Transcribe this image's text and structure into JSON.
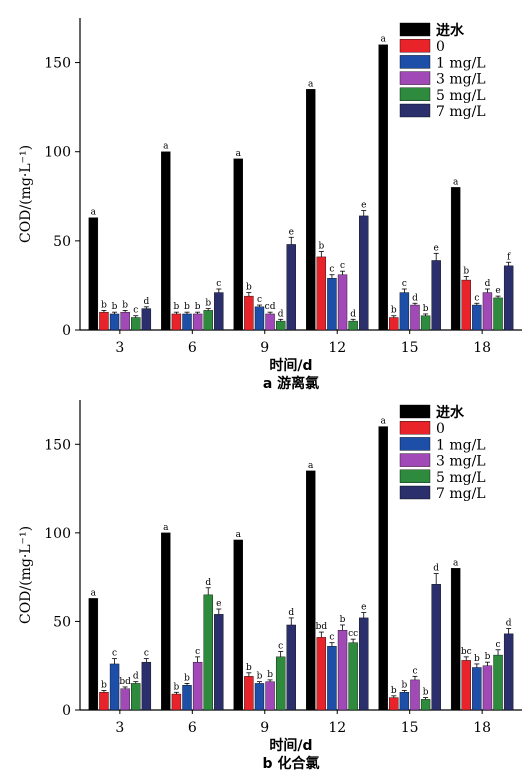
{
  "chart_data": [
    {
      "type": "bar",
      "caption": "a 游离氯",
      "xlabel": "时间/d",
      "ylabel": "COD/(mg·L⁻¹)",
      "ylim": [
        0,
        175
      ],
      "yticks": [
        0,
        50,
        100,
        150
      ],
      "categories": [
        "3",
        "6",
        "9",
        "12",
        "15",
        "18"
      ],
      "legend_position": "top-right",
      "series": [
        {
          "name": "进水",
          "color": "#000000",
          "values": [
            63,
            100,
            96,
            135,
            160,
            80
          ],
          "errors": [
            0,
            0,
            0,
            0,
            0,
            0
          ],
          "labels": [
            "a",
            "a",
            "a",
            "a",
            "a",
            "a"
          ]
        },
        {
          "name": "0",
          "color": "#e8232a",
          "values": [
            10,
            9,
            19,
            41,
            7,
            28
          ],
          "errors": [
            1,
            1,
            2,
            3,
            1,
            2
          ],
          "labels": [
            "b",
            "b",
            "b",
            "b",
            "b",
            "b"
          ]
        },
        {
          "name": "1 mg/L",
          "color": "#1d4fa8",
          "values": [
            9,
            9,
            13,
            29,
            21,
            14
          ],
          "errors": [
            1,
            1,
            1,
            2,
            2,
            1
          ],
          "labels": [
            "b",
            "b",
            "c",
            "c",
            "c",
            "c"
          ]
        },
        {
          "name": "3 mg/L",
          "color": "#a249b8",
          "values": [
            10,
            9,
            9,
            31,
            14,
            21
          ],
          "errors": [
            1,
            1,
            1,
            2,
            1,
            2
          ],
          "labels": [
            "b",
            "b",
            "cd",
            "c",
            "d",
            "d"
          ]
        },
        {
          "name": "5 mg/L",
          "color": "#2e8b3e",
          "values": [
            7,
            11,
            5,
            5,
            8,
            18
          ],
          "errors": [
            1,
            1,
            1,
            1,
            1,
            1
          ],
          "labels": [
            "c",
            "b",
            "d",
            "d",
            "b",
            "e"
          ]
        },
        {
          "name": "7 mg/L",
          "color": "#2b2f6b",
          "values": [
            12,
            21,
            48,
            64,
            39,
            36
          ],
          "errors": [
            1,
            2,
            4,
            3,
            4,
            2
          ],
          "labels": [
            "d",
            "c",
            "e",
            "e",
            "e",
            "f"
          ]
        }
      ]
    },
    {
      "type": "bar",
      "caption": "b 化合氯",
      "xlabel": "时间/d",
      "ylabel": "COD/(mg·L⁻¹)",
      "ylim": [
        0,
        175
      ],
      "yticks": [
        0,
        50,
        100,
        150
      ],
      "categories": [
        "3",
        "6",
        "9",
        "12",
        "15",
        "18"
      ],
      "legend_position": "top-right",
      "series": [
        {
          "name": "进水",
          "color": "#000000",
          "values": [
            63,
            100,
            96,
            135,
            160,
            80
          ],
          "errors": [
            0,
            0,
            0,
            0,
            0,
            0
          ],
          "labels": [
            "a",
            "a",
            "a",
            "a",
            "a",
            "a"
          ]
        },
        {
          "name": "0",
          "color": "#e8232a",
          "values": [
            10,
            9,
            19,
            41,
            7,
            28
          ],
          "errors": [
            1,
            1,
            2,
            3,
            1,
            2
          ],
          "labels": [
            "b",
            "b",
            "b",
            "bd",
            "b",
            "bc"
          ]
        },
        {
          "name": "1 mg/L",
          "color": "#1d4fa8",
          "values": [
            26,
            14,
            15,
            36,
            10,
            24
          ],
          "errors": [
            3,
            1,
            1,
            2,
            1,
            2
          ],
          "labels": [
            "c",
            "b",
            "b",
            "c",
            "b",
            "b"
          ]
        },
        {
          "name": "3 mg/L",
          "color": "#a249b8",
          "values": [
            12,
            27,
            16,
            45,
            17,
            25
          ],
          "errors": [
            1,
            3,
            1,
            3,
            2,
            2
          ],
          "labels": [
            "bd",
            "c",
            "b",
            "b",
            "c",
            "b"
          ]
        },
        {
          "name": "5 mg/L",
          "color": "#2e8b3e",
          "values": [
            15,
            65,
            30,
            38,
            6,
            31
          ],
          "errors": [
            1,
            4,
            3,
            2,
            1,
            3
          ],
          "labels": [
            "d",
            "d",
            "c",
            "cc",
            "b",
            "c"
          ]
        },
        {
          "name": "7 mg/L",
          "color": "#2b2f6b",
          "values": [
            27,
            54,
            48,
            52,
            71,
            43
          ],
          "errors": [
            2,
            3,
            4,
            3,
            6,
            3
          ],
          "labels": [
            "c",
            "e",
            "d",
            "e",
            "d",
            "d"
          ]
        }
      ]
    }
  ]
}
